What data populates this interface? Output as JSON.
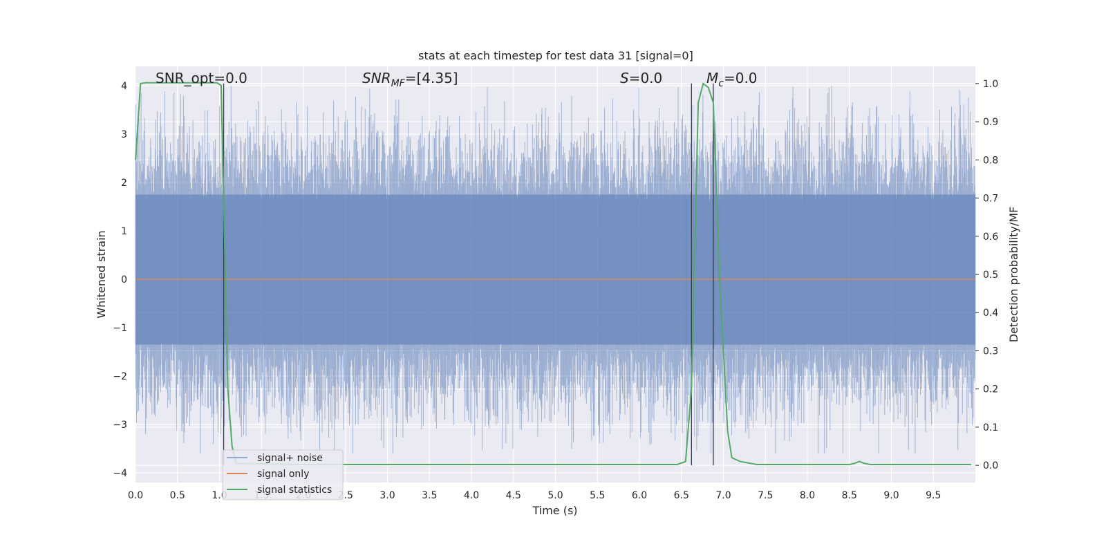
{
  "chart_data": {
    "type": "line",
    "title": "stats at each timestep for test data 31 [signal=0]",
    "xlabel": "Time (s)",
    "ylabel_left": "Whitened strain",
    "ylabel_right": "Detection probability/MF",
    "xlim": [
      0.0,
      10.0
    ],
    "ylim_left": [
      -4.2,
      4.4
    ],
    "ylim_right": [
      -0.045,
      1.045
    ],
    "x_ticks": [
      "0.0",
      "0.5",
      "1.0",
      "1.5",
      "2.0",
      "2.5",
      "3.0",
      "3.5",
      "4.0",
      "4.5",
      "5.0",
      "5.5",
      "6.0",
      "6.5",
      "7.0",
      "7.5",
      "8.0",
      "8.5",
      "9.0",
      "9.5"
    ],
    "y_left_ticks": [
      "4",
      "3",
      "2",
      "1",
      "0",
      "−1",
      "−2",
      "−3",
      "−4"
    ],
    "y_right_ticks": [
      "1.0",
      "0.9",
      "0.8",
      "0.7",
      "0.6",
      "0.5",
      "0.4",
      "0.3",
      "0.2",
      "0.1",
      "0.0"
    ],
    "grid": true,
    "legend_placement": "lower-left",
    "annotations": {
      "snr_opt": "SNR_opt=0.0",
      "snr_mf_main": "SNR",
      "snr_mf_sub": "MF",
      "snr_mf_val": "=[4.35]",
      "s_main": "S",
      "s_val": "=0.0",
      "mc_main": "M",
      "mc_sub": "c",
      "mc_val": "=0.0"
    },
    "series": [
      {
        "name": "signal+ noise",
        "axis": "left",
        "color": "#4c72b0",
        "description": "whitened noise, approx. Gaussian between -3.6 and 4.0"
      },
      {
        "name": "signal only",
        "axis": "left",
        "color": "#dd8452",
        "x": [
          0.0,
          10.0
        ],
        "y": [
          0.0,
          0.0
        ]
      },
      {
        "name": "signal statistics",
        "axis": "right",
        "color": "#55a868",
        "x": [
          0.0,
          0.06,
          0.12,
          0.5,
          0.8,
          0.97,
          1.02,
          1.06,
          1.1,
          1.15,
          1.2,
          2.0,
          3.0,
          4.0,
          5.0,
          6.0,
          6.45,
          6.55,
          6.62,
          6.7,
          6.76,
          6.82,
          6.88,
          6.95,
          7.0,
          7.05,
          7.1,
          7.2,
          7.4,
          8.0,
          8.5,
          8.56,
          8.62,
          8.68,
          8.75,
          9.0,
          9.5,
          9.95
        ],
        "y": [
          0.8,
          1.0,
          1.002,
          1.002,
          1.002,
          1.002,
          0.995,
          0.6,
          0.2,
          0.05,
          0.005,
          0.002,
          0.002,
          0.002,
          0.002,
          0.002,
          0.002,
          0.01,
          0.2,
          0.95,
          1.0,
          0.99,
          0.95,
          0.5,
          0.3,
          0.09,
          0.02,
          0.01,
          0.002,
          0.002,
          0.002,
          0.005,
          0.01,
          0.005,
          0.002,
          0.002,
          0.002,
          0.002
        ]
      }
    ],
    "vertical_lines": [
      1.05,
      6.62,
      6.88
    ]
  }
}
